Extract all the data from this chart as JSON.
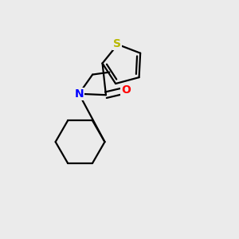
{
  "background_color": "#ebebeb",
  "atom_colors": {
    "C": "#000000",
    "N": "#0000ff",
    "O": "#ff0000",
    "S": "#b8b800"
  },
  "line_color": "#000000",
  "line_width": 1.6,
  "dbo": 0.012
}
